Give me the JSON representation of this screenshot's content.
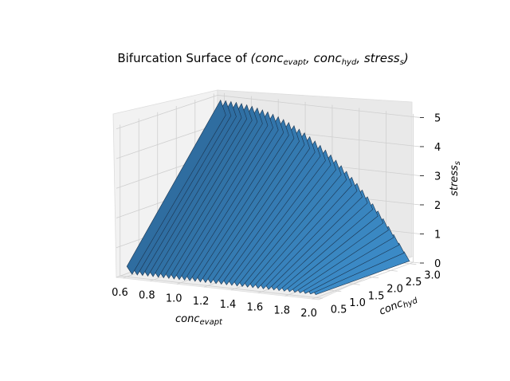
{
  "chart_data": {
    "type": "surface3d",
    "title_prefix": "Bifurcation Surface of ",
    "title_vars": "(conc",
    "title": "Bifurcation Surface of (conc_evapt, conc_hyd, stress_s)",
    "xlabel": "conc_evapt",
    "ylabel": "conc_hyd",
    "zlabel": "stress_s",
    "xlim": [
      0.55,
      2.05
    ],
    "ylim": [
      0.4,
      3.1
    ],
    "zlim": [
      0,
      5.1
    ],
    "x_ticks": [
      "0.6",
      "0.8",
      "1.0",
      "1.2",
      "1.4",
      "1.6",
      "1.8",
      "2.0"
    ],
    "y_ticks": [
      "0.5",
      "1.0",
      "1.5",
      "2.0",
      "2.5",
      "3.0"
    ],
    "z_ticks": [
      "0",
      "1",
      "2",
      "3",
      "4",
      "5"
    ],
    "surface": {
      "conc_evapt_range": [
        0.6,
        2.0
      ],
      "conc_hyd_range": [
        0.5,
        3.0
      ],
      "stress_s_max": 4.9,
      "stress_s_min": 0.0,
      "color": "#2f7fba",
      "edge_color": "#1b3550"
    },
    "grid": true
  }
}
